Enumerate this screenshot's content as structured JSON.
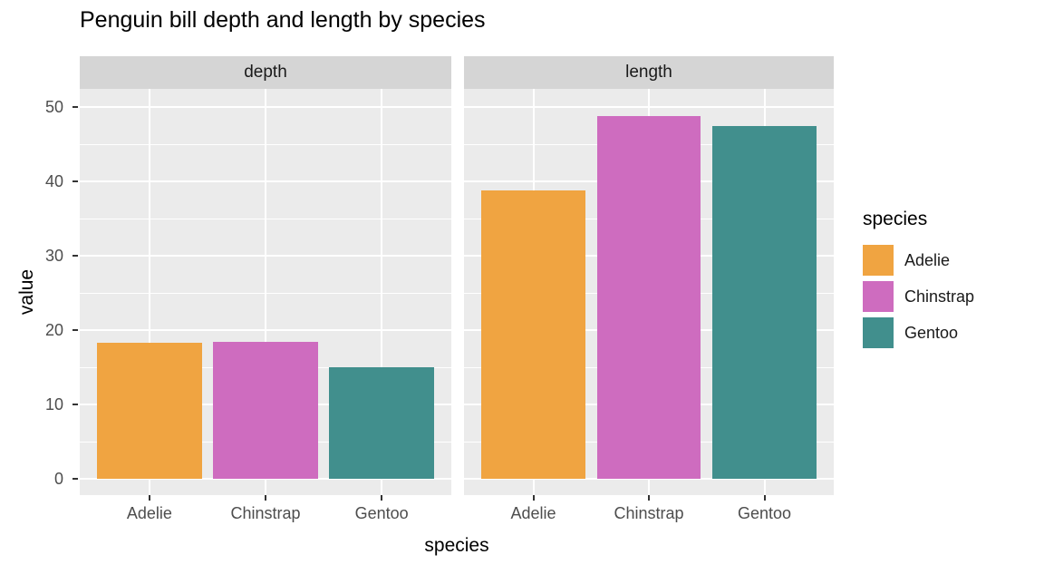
{
  "title": "Penguin bill depth and length by species",
  "chart_data": {
    "type": "bar",
    "faceted": true,
    "facets": [
      "depth",
      "length"
    ],
    "categories": [
      "Adelie",
      "Chinstrap",
      "Gentoo"
    ],
    "series": [
      {
        "facet": "depth",
        "values": [
          18.3,
          18.4,
          15.0
        ]
      },
      {
        "facet": "length",
        "values": [
          38.8,
          48.8,
          47.5
        ]
      }
    ],
    "colors": {
      "Adelie": "#F0A441",
      "Chinstrap": "#CE6CBF",
      "Gentoo": "#418F8D"
    },
    "xlabel": "species",
    "ylabel": "value",
    "y_ticks": [
      0,
      10,
      20,
      30,
      40,
      50
    ],
    "y_minor_ticks": [
      5,
      15,
      25,
      35,
      45
    ],
    "ylim": [
      0,
      52
    ],
    "grid": true,
    "panel_background": "#EBEBEB",
    "strip_background": "#D5D5D5",
    "gridline_color": "#FFFFFF",
    "legend": {
      "title": "species",
      "position": "right",
      "entries": [
        "Adelie",
        "Chinstrap",
        "Gentoo"
      ]
    }
  }
}
